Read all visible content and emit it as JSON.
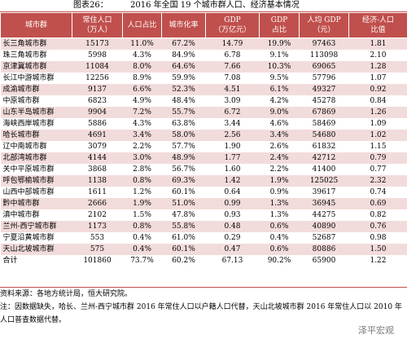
{
  "title": {
    "label": "图表26：",
    "text": "2016 年全国 19 个城市群人口、经济基本情况"
  },
  "table": {
    "headers": [
      [
        "城市群"
      ],
      [
        "常住人口",
        "（万人）"
      ],
      [
        "人口占比"
      ],
      [
        "城市化率"
      ],
      [
        "GDP",
        "（万亿元）"
      ],
      [
        "GDP",
        "占比"
      ],
      [
        "人均 GDP",
        "（元）"
      ],
      [
        "经济-人口",
        "比值"
      ]
    ],
    "rows": [
      [
        "长三角城市群",
        "15173",
        "11.0%",
        "67.2%",
        "14.79",
        "19.9%",
        "97463",
        "1.81"
      ],
      [
        "珠三角城市群",
        "5998",
        "4.3%",
        "84.9%",
        "6.78",
        "9.1%",
        "113098",
        "2.10"
      ],
      [
        "京津冀城市群",
        "11084",
        "8.0%",
        "64.6%",
        "7.66",
        "10.3%",
        "69065",
        "1.28"
      ],
      [
        "长江中游城市群",
        "12256",
        "8.9%",
        "59.9%",
        "7.08",
        "9.5%",
        "57796",
        "1.07"
      ],
      [
        "成渝城市群",
        "9137",
        "6.6%",
        "52.3%",
        "4.51",
        "6.1%",
        "49327",
        "0.92"
      ],
      [
        "中原城市群",
        "6823",
        "4.9%",
        "48.4%",
        "3.09",
        "4.2%",
        "45278",
        "0.84"
      ],
      [
        "山东半岛城市群",
        "9904",
        "7.2%",
        "55.7%",
        "6.72",
        "9.0%",
        "67869",
        "1.26"
      ],
      [
        "海峡西岸城市群",
        "5886",
        "4.3%",
        "63.8%",
        "3.44",
        "4.6%",
        "58469",
        "1.09"
      ],
      [
        "哈长城市群",
        "4691",
        "3.4%",
        "58.0%",
        "2.56",
        "3.4%",
        "54680",
        "1.02"
      ],
      [
        "辽中南城市群",
        "3079",
        "2.2%",
        "57.7%",
        "1.90",
        "2.6%",
        "61832",
        "1.15"
      ],
      [
        "北部湾城市群",
        "4144",
        "3.0%",
        "48.9%",
        "1.77",
        "2.4%",
        "42712",
        "0.79"
      ],
      [
        "关中平原城市群",
        "3868",
        "2.8%",
        "56.7%",
        "1.60",
        "2.2%",
        "41400",
        "0.77"
      ],
      [
        "呼包鄂榆城市群",
        "1138",
        "0.8%",
        "69.3%",
        "1.42",
        "1.9%",
        "125025",
        "2.32"
      ],
      [
        "山西中部城市群",
        "1611",
        "1.2%",
        "60.1%",
        "0.64",
        "0.9%",
        "39617",
        "0.74"
      ],
      [
        "黔中城市群",
        "2666",
        "1.9%",
        "51.0%",
        "0.99",
        "1.3%",
        "36945",
        "0.69"
      ],
      [
        "滇中城市群",
        "2102",
        "1.5%",
        "47.8%",
        "0.93",
        "1.3%",
        "44275",
        "0.82"
      ],
      [
        "兰州-西宁城市群",
        "1173",
        "0.8%",
        "55.8%",
        "0.48",
        "0.6%",
        "40890",
        "0.76"
      ],
      [
        "宁夏沿黄城市群",
        "553",
        "0.4%",
        "61.0%",
        "0.29",
        "0.4%",
        "52687",
        "0.98"
      ],
      [
        "天山北坡城市群",
        "575",
        "0.4%",
        "60.1%",
        "0.47",
        "0.6%",
        "80886",
        "1.50"
      ],
      [
        "合计",
        "101860",
        "73.7%",
        "60.2%",
        "67.13",
        "90.2%",
        "65900",
        "1.22"
      ]
    ]
  },
  "notes": [
    "资料来源：各地方统计局，恒大研究院。",
    "注：因数据缺失，哈长、兰州-西宁城市群 2016 年常住人口以户籍人口代替，天山北坡城市群 2016 年常住人口以 2010 年人口普查数据代替。"
  ],
  "watermark": "泽平宏观"
}
